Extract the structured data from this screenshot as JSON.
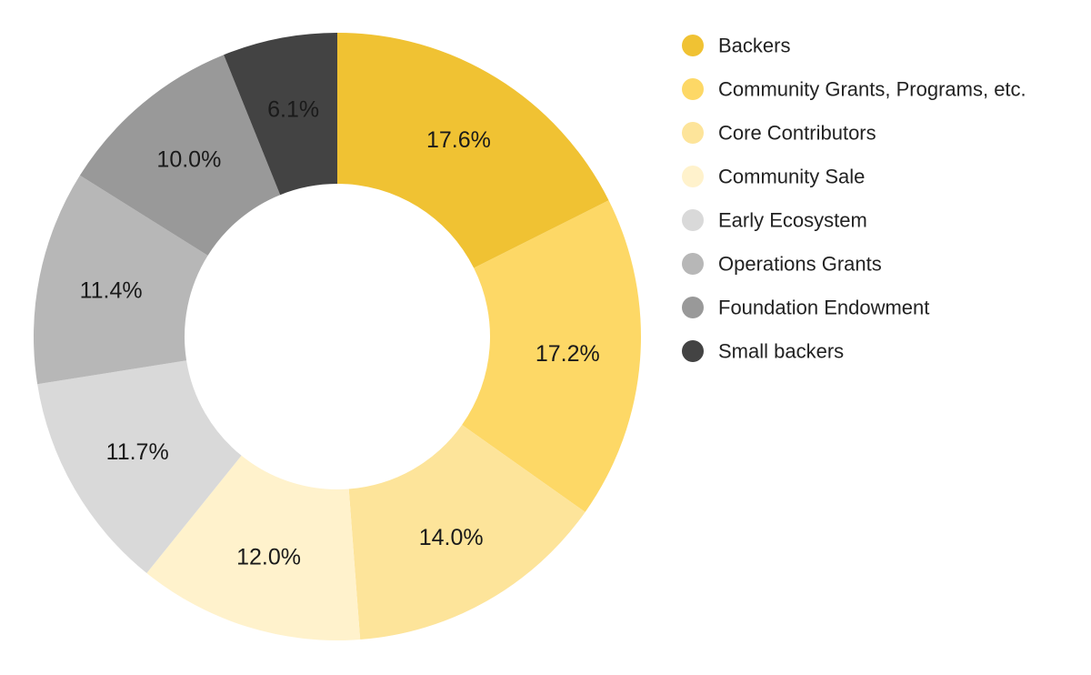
{
  "chart_data": {
    "type": "pie",
    "donut": true,
    "title": "",
    "legend_position": "right",
    "categories": [
      "Backers",
      "Community Grants, Programs, etc.",
      "Core Contributors",
      "Community Sale",
      "Early Ecosystem",
      "Operations Grants",
      "Foundation Endowment",
      "Small backers"
    ],
    "values": [
      17.6,
      17.2,
      14.0,
      12.0,
      11.7,
      11.4,
      10.0,
      6.1
    ],
    "labels": [
      "17.6%",
      "17.2%",
      "14.0%",
      "12.0%",
      "11.7%",
      "11.4%",
      "10.0%",
      "6.1%"
    ],
    "colors": [
      "#f0c233",
      "#fdd866",
      "#fde49a",
      "#fff2cc",
      "#d9d9d9",
      "#b7b7b7",
      "#999999",
      "#434343"
    ]
  }
}
